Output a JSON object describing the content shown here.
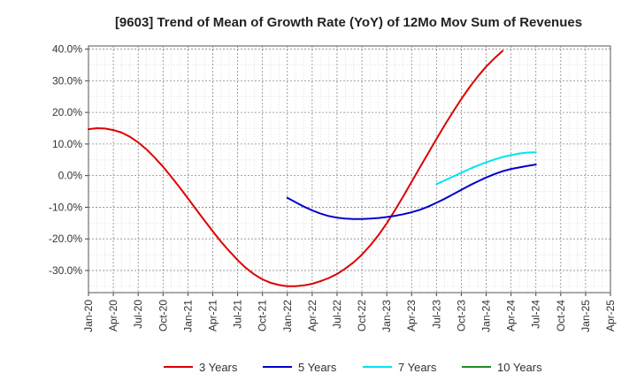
{
  "chart_data": {
    "type": "line",
    "title": "[9603]  Trend of Mean of Growth Rate (YoY) of 12Mo Mov Sum of Revenues",
    "xlabel": "",
    "ylabel": "",
    "ylim": [
      -37,
      41
    ],
    "y_ticks": [
      40,
      30,
      20,
      10,
      0,
      -10,
      -20,
      -30
    ],
    "y_tick_labels": [
      "40.0%",
      "30.0%",
      "20.0%",
      "10.0%",
      "0.0%",
      "-10.0%",
      "-20.0%",
      "-30.0%"
    ],
    "x_tick_labels": [
      "Jan-20",
      "Apr-20",
      "Jul-20",
      "Oct-20",
      "Jan-21",
      "Apr-21",
      "Jul-21",
      "Oct-21",
      "Jan-22",
      "Apr-22",
      "Jul-22",
      "Oct-22",
      "Jan-23",
      "Apr-23",
      "Jul-23",
      "Oct-23",
      "Jan-24",
      "Apr-24",
      "Jul-24",
      "Oct-24",
      "Jan-25",
      "Apr-25"
    ],
    "grid": true,
    "legend_position": "bottom",
    "series": [
      {
        "name": "3 Years",
        "color": "#dd0000",
        "points": [
          [
            0,
            14.7
          ],
          [
            1,
            15.0
          ],
          [
            2,
            14.9
          ],
          [
            3,
            14.4
          ],
          [
            4,
            13.6
          ],
          [
            5,
            12.3
          ],
          [
            6,
            10.5
          ],
          [
            7,
            8.3
          ],
          [
            8,
            5.7
          ],
          [
            9,
            2.8
          ],
          [
            10,
            -0.4
          ],
          [
            11,
            -3.7
          ],
          [
            12,
            -7.2
          ],
          [
            13,
            -10.7
          ],
          [
            14,
            -14.2
          ],
          [
            15,
            -17.6
          ],
          [
            16,
            -20.9
          ],
          [
            17,
            -23.9
          ],
          [
            18,
            -26.7
          ],
          [
            19,
            -29.2
          ],
          [
            20,
            -31.2
          ],
          [
            21,
            -32.8
          ],
          [
            22,
            -33.9
          ],
          [
            23,
            -34.6
          ],
          [
            24,
            -35.0
          ],
          [
            25,
            -35.0
          ],
          [
            26,
            -34.7
          ],
          [
            27,
            -34.2
          ],
          [
            28,
            -33.4
          ],
          [
            29,
            -32.4
          ],
          [
            30,
            -31.1
          ],
          [
            31,
            -29.4
          ],
          [
            32,
            -27.4
          ],
          [
            33,
            -25.0
          ],
          [
            34,
            -22.1
          ],
          [
            35,
            -18.8
          ],
          [
            36,
            -15.1
          ],
          [
            37,
            -10.9
          ],
          [
            38,
            -6.5
          ],
          [
            39,
            -2.0
          ],
          [
            40,
            2.6
          ],
          [
            41,
            7.1
          ],
          [
            42,
            11.6
          ],
          [
            43,
            16.0
          ],
          [
            44,
            20.2
          ],
          [
            45,
            24.2
          ],
          [
            46,
            28.0
          ],
          [
            47,
            31.4
          ],
          [
            48,
            34.5
          ],
          [
            49,
            37.1
          ],
          [
            50,
            39.5
          ]
        ]
      },
      {
        "name": "5 Years",
        "color": "#0000cc",
        "points": [
          [
            24,
            -7.0
          ],
          [
            25,
            -8.4
          ],
          [
            26,
            -9.8
          ],
          [
            27,
            -11.0
          ],
          [
            28,
            -12.0
          ],
          [
            29,
            -12.8
          ],
          [
            30,
            -13.3
          ],
          [
            31,
            -13.6
          ],
          [
            32,
            -13.7
          ],
          [
            33,
            -13.7
          ],
          [
            34,
            -13.6
          ],
          [
            35,
            -13.4
          ],
          [
            36,
            -13.1
          ],
          [
            37,
            -12.7
          ],
          [
            38,
            -12.2
          ],
          [
            39,
            -11.6
          ],
          [
            40,
            -10.8
          ],
          [
            41,
            -9.8
          ],
          [
            42,
            -8.6
          ],
          [
            43,
            -7.3
          ],
          [
            44,
            -5.9
          ],
          [
            45,
            -4.5
          ],
          [
            46,
            -3.1
          ],
          [
            47,
            -1.8
          ],
          [
            48,
            -0.6
          ],
          [
            49,
            0.5
          ],
          [
            50,
            1.4
          ],
          [
            51,
            2.1
          ],
          [
            52,
            2.6
          ],
          [
            53,
            3.1
          ],
          [
            54,
            3.5
          ]
        ]
      },
      {
        "name": "7 Years",
        "color": "#00e5ee",
        "points": [
          [
            42,
            -2.7
          ],
          [
            43,
            -1.5
          ],
          [
            44,
            -0.3
          ],
          [
            45,
            0.9
          ],
          [
            46,
            2.1
          ],
          [
            47,
            3.2
          ],
          [
            48,
            4.2
          ],
          [
            49,
            5.1
          ],
          [
            50,
            5.9
          ],
          [
            51,
            6.5
          ],
          [
            52,
            7.0
          ],
          [
            53,
            7.3
          ],
          [
            54,
            7.4
          ]
        ]
      },
      {
        "name": "10 Years",
        "color": "#228b22",
        "points": []
      }
    ]
  }
}
